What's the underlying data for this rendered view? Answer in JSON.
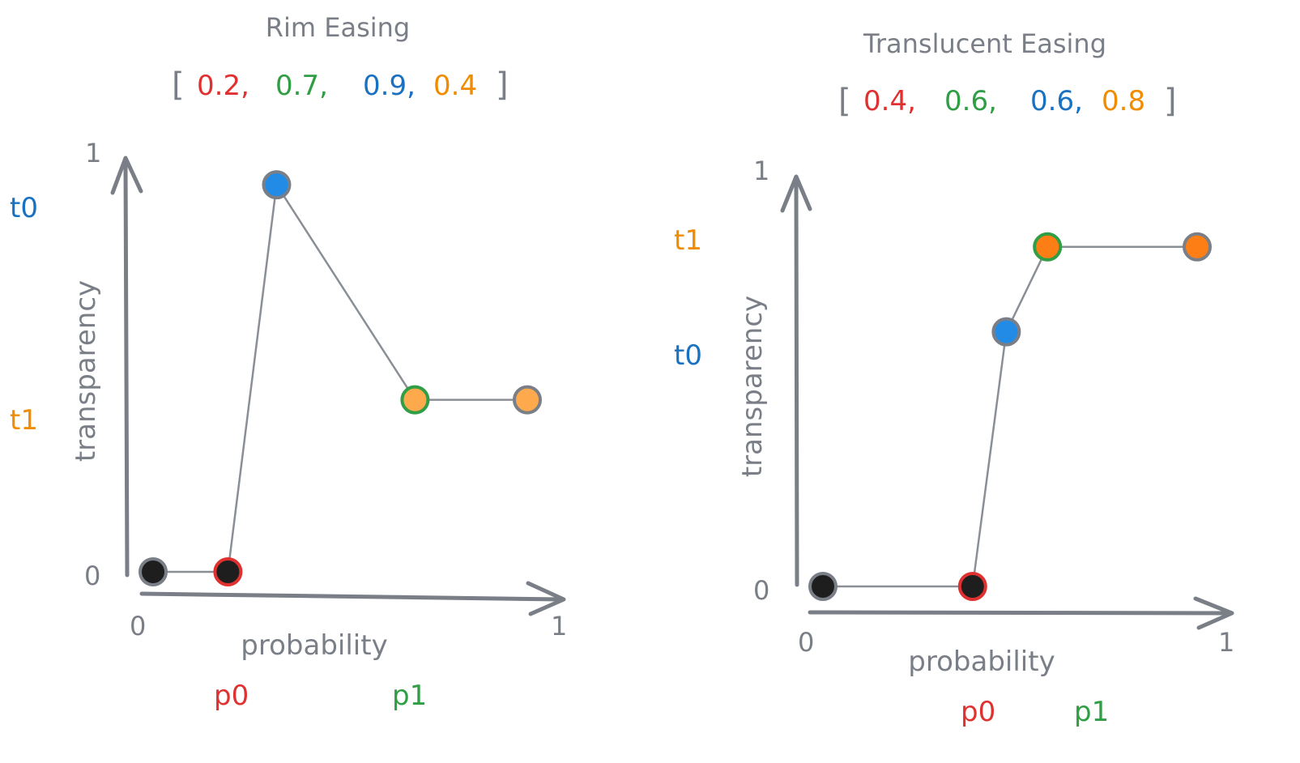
{
  "colors": {
    "ink": "#7a7f87",
    "red": "#e03131",
    "green": "#2f9e44",
    "blue": "#1971c2",
    "orange": "#f08c00",
    "point_dark": "#1e1e1e",
    "point_blue": "#228be6",
    "point_orange_light": "#ffa94d",
    "point_orange": "#fd7e14"
  },
  "diagrams": [
    {
      "id": "rim",
      "title": "Rim Easing",
      "bracket_open": "[",
      "bracket_close": "]",
      "params": [
        {
          "text": "0.2,",
          "color": "red"
        },
        {
          "text": "0.7,",
          "color": "green"
        },
        {
          "text": "0.9,",
          "color": "blue"
        },
        {
          "text": "0.4",
          "color": "orange"
        }
      ],
      "x_label": "probability",
      "y_label": "transparency",
      "x_ticks": [
        "0",
        "1"
      ],
      "y_ticks": [
        "0",
        "1"
      ],
      "y_markers": [
        {
          "text": "t0",
          "color": "blue",
          "value": 0.9
        },
        {
          "text": "t1",
          "color": "orange",
          "value": 0.4
        }
      ],
      "x_markers": [
        {
          "text": "p0",
          "color": "red",
          "value": 0.2
        },
        {
          "text": "p1",
          "color": "green",
          "value": 0.7
        }
      ],
      "points": [
        {
          "x": 0.0,
          "y": 0.0,
          "fill": "point_dark",
          "ring": "ink"
        },
        {
          "x": 0.2,
          "y": 0.0,
          "fill": "point_dark",
          "ring": "red"
        },
        {
          "x": 0.33,
          "y": 0.9,
          "fill": "point_blue",
          "ring": "ink"
        },
        {
          "x": 0.7,
          "y": 0.4,
          "fill": "point_orange_light",
          "ring": "green"
        },
        {
          "x": 1.0,
          "y": 0.4,
          "fill": "point_orange_light",
          "ring": "ink"
        }
      ]
    },
    {
      "id": "translucent",
      "title": "Translucent Easing",
      "bracket_open": "[",
      "bracket_close": "]",
      "params": [
        {
          "text": "0.4,",
          "color": "red"
        },
        {
          "text": "0.6,",
          "color": "green"
        },
        {
          "text": "0.6,",
          "color": "blue"
        },
        {
          "text": "0.8",
          "color": "orange"
        }
      ],
      "x_label": "probability",
      "y_label": "transparency",
      "x_ticks": [
        "0",
        "1"
      ],
      "y_ticks": [
        "0",
        "1"
      ],
      "y_markers": [
        {
          "text": "t1",
          "color": "orange",
          "value": 0.8
        },
        {
          "text": "t0",
          "color": "blue",
          "value": 0.6
        }
      ],
      "x_markers": [
        {
          "text": "p0",
          "color": "red",
          "value": 0.4
        },
        {
          "text": "p1",
          "color": "green",
          "value": 0.6
        }
      ],
      "points": [
        {
          "x": 0.0,
          "y": 0.0,
          "fill": "point_dark",
          "ring": "ink"
        },
        {
          "x": 0.4,
          "y": 0.0,
          "fill": "point_dark",
          "ring": "red"
        },
        {
          "x": 0.49,
          "y": 0.6,
          "fill": "point_blue",
          "ring": "ink"
        },
        {
          "x": 0.6,
          "y": 0.8,
          "fill": "point_orange",
          "ring": "green"
        },
        {
          "x": 1.0,
          "y": 0.8,
          "fill": "point_orange",
          "ring": "ink"
        }
      ]
    }
  ]
}
